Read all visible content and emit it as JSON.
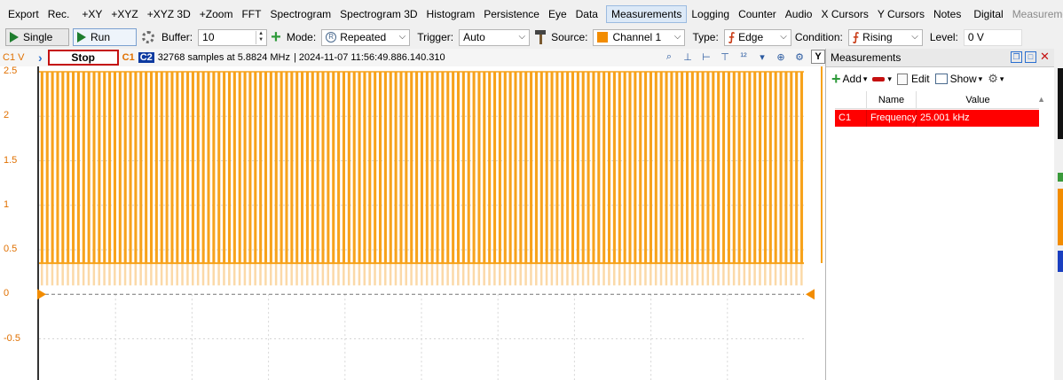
{
  "menu": {
    "items": [
      "Export",
      "Rec.",
      "+XY",
      "+XYZ",
      "+XYZ 3D",
      "+Zoom",
      "FFT",
      "Spectrogram",
      "Spectrogram 3D",
      "Histogram",
      "Persistence",
      "Eye",
      "Data",
      "Measurements",
      "Logging",
      "Counter",
      "Audio",
      "X Cursors",
      "Y Cursors",
      "Notes",
      "Digital",
      "Measurements"
    ],
    "active": "Measurements"
  },
  "toolbar": {
    "single_label": "Single",
    "run_label": "Run",
    "buffer_label": "Buffer:",
    "buffer_value": "10",
    "mode_label": "Mode:",
    "mode_value": "Repeated",
    "trigger_label": "Trigger:",
    "trigger_value": "Auto",
    "source_label": "Source:",
    "source_value": "Channel 1",
    "type_label": "Type:",
    "type_value": "Edge",
    "condition_label": "Condition:",
    "condition_value": "Rising",
    "level_label": "Level:",
    "level_value": "0 V"
  },
  "plot": {
    "channel_unit": "C1 V",
    "stop_label": "Stop",
    "c1_tag": "C1",
    "c2_tag": "C2",
    "info": "32768 samples at 5.8824 MHz",
    "timestamp": "| 2024-11-07 11:56:49.886.140.310",
    "y_button": "Y",
    "yticks": [
      "2.5",
      "2",
      "1.5",
      "1",
      "0.5",
      "0",
      "-0.5"
    ],
    "y_range": [
      -0.9,
      2.5
    ],
    "signal": {
      "high_v": 2.5,
      "low_v": 0.35,
      "shadow_low_v": 0.1,
      "cycles": 147
    },
    "colors": {
      "signal": "#f7a21b",
      "signal_shadow": "#fbd9a8",
      "trigger_marker": "#f28c00"
    }
  },
  "measurements_panel": {
    "title": "Measurements",
    "add_label": "Add",
    "edit_label": "Edit",
    "show_label": "Show",
    "columns": [
      "Name",
      "Value"
    ],
    "rows": [
      {
        "channel": "C1",
        "name": "Frequency",
        "value": "25.001 kHz"
      }
    ],
    "colors": {
      "row_highlight": "#ff0000"
    }
  }
}
